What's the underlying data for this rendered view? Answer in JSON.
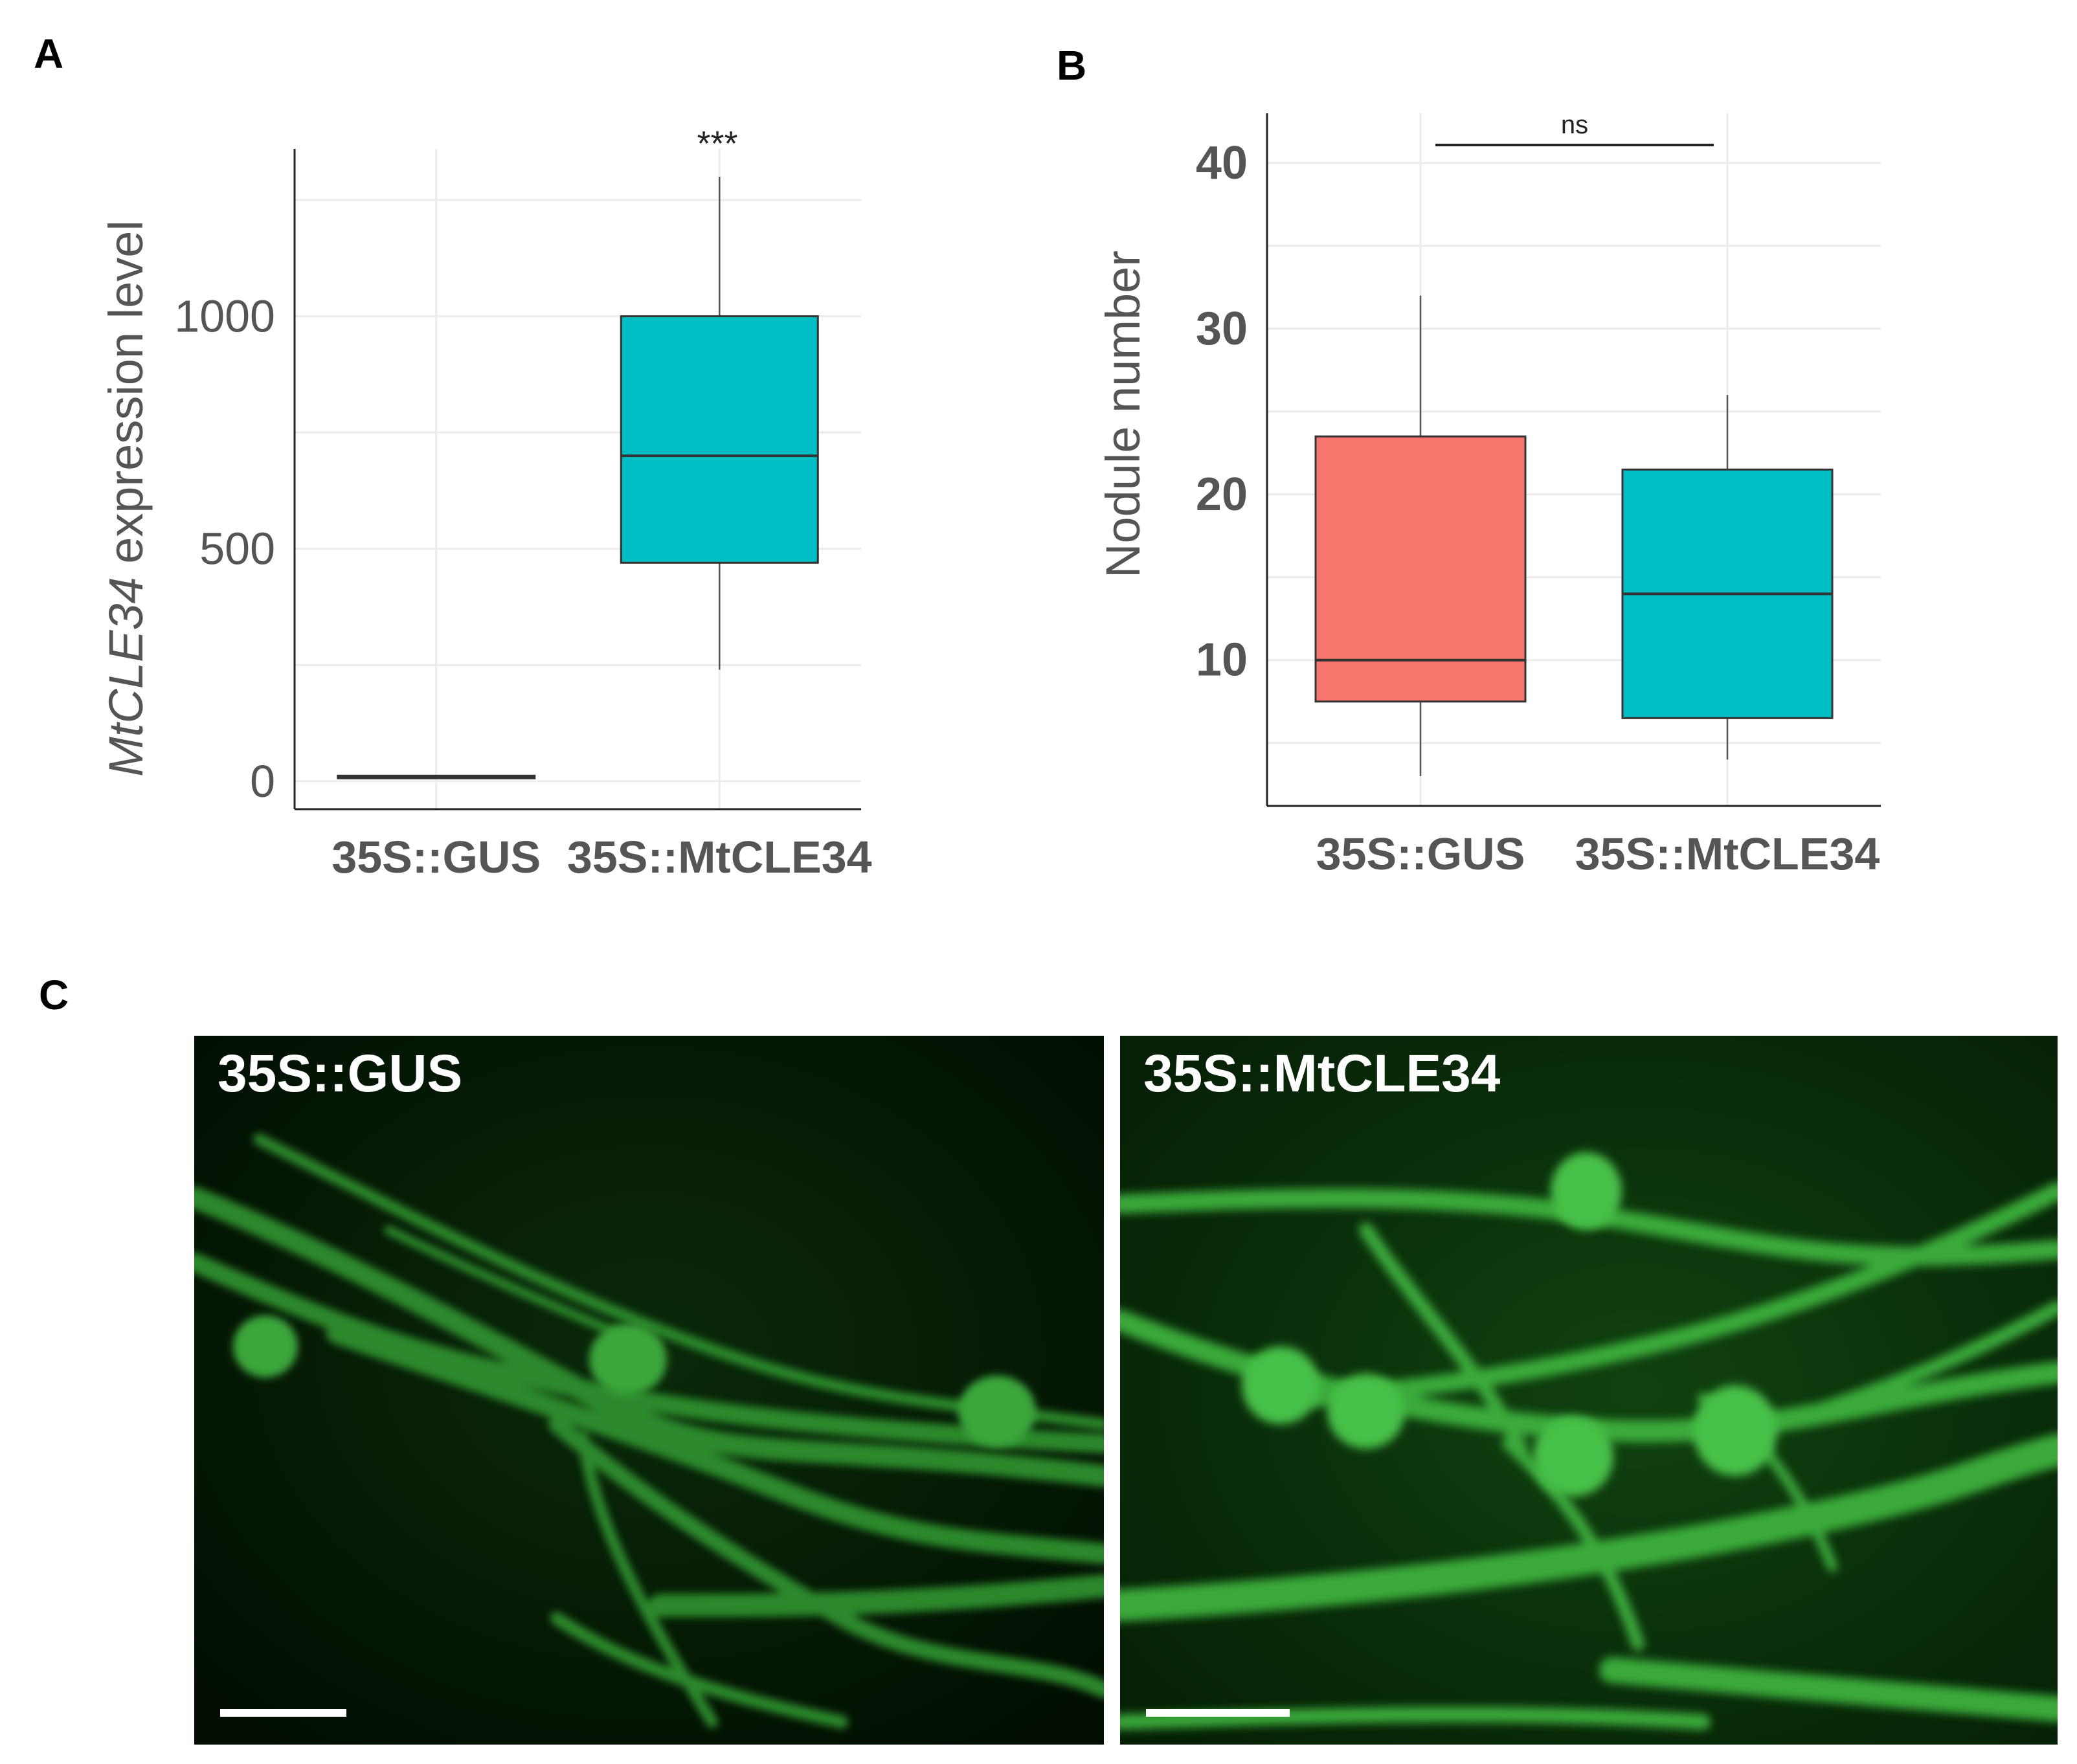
{
  "panels": {
    "a": "A",
    "b": "B",
    "c": "C"
  },
  "chart_data": [
    {
      "type": "box",
      "panel": "A",
      "ylabel_italic": "MtCLE34",
      "ylabel_rest": " expression level",
      "categories": [
        "35S::GUS",
        "35S::MtCLE34"
      ],
      "yticks": [
        0,
        500,
        1000
      ],
      "ylim": [
        -60,
        1360
      ],
      "grid": true,
      "boxes": [
        {
          "category": "35S::GUS",
          "whisker_low": 8,
          "q1": 8,
          "median": 10,
          "q3": 12,
          "whisker_high": 12,
          "color": "#f8766d"
        },
        {
          "category": "35S::MtCLE34",
          "whisker_low": 240,
          "q1": 470,
          "median": 700,
          "q3": 1000,
          "whisker_high": 1300,
          "color": "#00bfc4"
        }
      ],
      "annotation": "***"
    },
    {
      "type": "box",
      "panel": "B",
      "ylabel": "Nodule number",
      "categories": [
        "35S::GUS",
        "35S::MtCLE34"
      ],
      "yticks": [
        10,
        20,
        30,
        40
      ],
      "ylim": [
        1.2,
        43
      ],
      "grid": true,
      "boxes": [
        {
          "category": "35S::GUS",
          "whisker_low": 3,
          "q1": 7.5,
          "median": 10,
          "q3": 23.5,
          "whisker_high": 32,
          "color": "#f8766d"
        },
        {
          "category": "35S::MtCLE34",
          "whisker_low": 4,
          "q1": 6.5,
          "median": 14,
          "q3": 21.5,
          "whisker_high": 26,
          "color": "#00bfc4"
        }
      ],
      "significance": "ns"
    }
  ],
  "micrographs": [
    {
      "label": "35S::GUS"
    },
    {
      "label": "35S::MtCLE34"
    }
  ]
}
